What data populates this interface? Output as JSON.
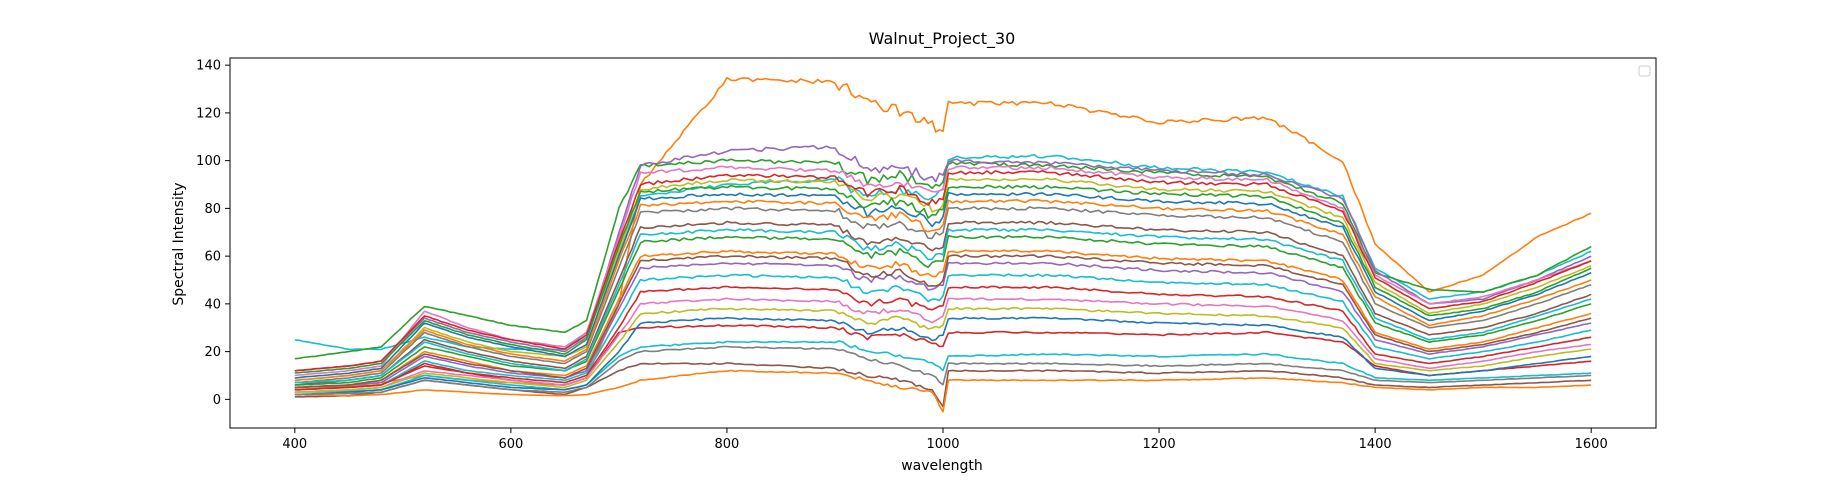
{
  "chart_data": {
    "type": "line",
    "title": "Walnut_Project_30",
    "xlabel": "wavelength",
    "ylabel": "Spectral Intensity",
    "xlim": [
      340,
      1660
    ],
    "ylim": [
      -12,
      143
    ],
    "x_ticks": [
      400,
      600,
      800,
      1000,
      1200,
      1400,
      1600
    ],
    "y_ticks": [
      0,
      20,
      40,
      60,
      80,
      100,
      120,
      140
    ],
    "grid": false,
    "legend": "top-right, empty",
    "palette": [
      "#1f77b4",
      "#ff7f0e",
      "#2ca02c",
      "#d62728",
      "#9467bd",
      "#8c564b",
      "#e377c2",
      "#7f7f7f",
      "#bcbd22",
      "#17becf"
    ],
    "x": [
      400,
      450,
      480,
      520,
      560,
      600,
      650,
      670,
      700,
      720,
      800,
      900,
      930,
      960,
      990,
      1000,
      1005,
      1100,
      1200,
      1300,
      1370,
      1400,
      1450,
      1500,
      1550,
      1600
    ],
    "series": [
      {
        "values": [
          25.0,
          21.0,
          21.0,
          26.0,
          22.0,
          21.0,
          21.0,
          28.0,
          60.0,
          85.0,
          90.0,
          92.0,
          85.0,
          88.0,
          83.0,
          88.0,
          101.0,
          102.0,
          97.0,
          95.0,
          85.0,
          55.0,
          42.0,
          45.0,
          52.0,
          62.0
        ],
        "color": "#17becf"
      },
      {
        "values": [
          5.0,
          5.5,
          7.0,
          10.0,
          8.0,
          7.0,
          6.0,
          9.0,
          40.0,
          90.0,
          134.0,
          133.0,
          124.0,
          121.0,
          115.0,
          113.0,
          124.0,
          124.0,
          116.0,
          118.0,
          100.0,
          65.0,
          45.0,
          52.0,
          68.0,
          78.0
        ],
        "color": "#ff7f0e"
      },
      {
        "values": [
          17.0,
          20.0,
          22.0,
          39.0,
          35.0,
          31.0,
          28.0,
          33.0,
          80.0,
          98.0,
          100.0,
          99.0,
          92.0,
          94.0,
          90.0,
          91.0,
          99.0,
          98.0,
          95.0,
          93.0,
          82.0,
          53.0,
          46.0,
          45.0,
          52.0,
          64.0
        ],
        "color": "#2ca02c"
      },
      {
        "values": [
          1.0,
          1.5,
          3.0,
          8.0,
          6.0,
          4.0,
          2.0,
          5.0,
          12.0,
          15.0,
          15.0,
          13.0,
          10.0,
          8.0,
          4.0,
          -3.0,
          12.0,
          12.0,
          11.0,
          12.0,
          9.0,
          6.0,
          5.0,
          6.0,
          7.0,
          8.0
        ],
        "color": "#8c564b"
      },
      {
        "values": [
          2.0,
          1.5,
          2.0,
          4.0,
          3.0,
          2.0,
          1.5,
          2.0,
          5.0,
          8.0,
          12.0,
          11.0,
          8.0,
          5.0,
          3.0,
          -5.0,
          8.0,
          8.0,
          8.0,
          9.0,
          7.0,
          5.0,
          4.0,
          5.0,
          5.0,
          6.0
        ],
        "color": "#ff7f0e"
      },
      {
        "values": [
          12.0,
          14.0,
          16.0,
          34.0,
          28.0,
          24.0,
          20.0,
          26.0,
          70.0,
          98.0,
          104.0,
          106.0,
          96.0,
          98.0,
          92.0,
          94.0,
          100.0,
          99.0,
          96.0,
          94.0,
          84.0,
          54.0,
          40.0,
          42.0,
          50.0,
          60.0
        ],
        "color": "#9467bd"
      },
      {
        "values": [
          3.0,
          3.5,
          4.0,
          10.0,
          8.0,
          6.0,
          4.0,
          6.0,
          18.0,
          22.0,
          24.0,
          24.0,
          21.0,
          18.0,
          16.0,
          12.0,
          18.0,
          19.0,
          18.0,
          19.0,
          15.0,
          9.0,
          8.0,
          9.0,
          10.0,
          11.0
        ],
        "color": "#17becf"
      },
      {
        "values": [
          4.0,
          5.0,
          6.0,
          15.0,
          11.0,
          8.0,
          6.0,
          9.0,
          28.0,
          30.0,
          31.0,
          30.0,
          26.0,
          27.0,
          24.0,
          22.0,
          28.0,
          28.0,
          27.0,
          28.0,
          24.0,
          14.0,
          10.0,
          12.0,
          14.0,
          16.0
        ],
        "color": "#d62728"
      },
      {
        "values": [
          10.0,
          12.0,
          14.0,
          37.0,
          30.0,
          25.0,
          22.0,
          28.0,
          68.0,
          95.0,
          97.0,
          96.0,
          90.0,
          91.0,
          86.0,
          88.0,
          97.0,
          97.0,
          93.0,
          92.0,
          80.0,
          52.0,
          40.0,
          43.0,
          50.0,
          58.0
        ],
        "color": "#e377c2"
      },
      {
        "values": [
          8.0,
          10.0,
          12.0,
          30.0,
          24.0,
          20.0,
          18.0,
          22.0,
          62.0,
          88.0,
          92.0,
          91.0,
          84.0,
          86.0,
          80.0,
          82.0,
          92.0,
          92.0,
          88.0,
          87.0,
          76.0,
          49.0,
          36.0,
          40.0,
          47.0,
          56.0
        ],
        "color": "#bcbd22"
      },
      {
        "values": [
          9.0,
          11.0,
          13.0,
          32.0,
          26.0,
          22.0,
          18.0,
          23.0,
          60.0,
          84.0,
          86.0,
          85.0,
          78.0,
          80.0,
          74.0,
          76.0,
          86.0,
          86.0,
          83.0,
          82.0,
          72.0,
          45.0,
          33.0,
          37.0,
          44.0,
          53.0
        ],
        "color": "#1f77b4"
      },
      {
        "values": [
          7.0,
          9.0,
          11.0,
          28.0,
          22.0,
          18.0,
          15.0,
          20.0,
          55.0,
          78.0,
          80.0,
          79.0,
          72.0,
          74.0,
          68.0,
          70.0,
          80.0,
          80.0,
          77.0,
          76.0,
          66.0,
          40.0,
          30.0,
          33.0,
          40.0,
          48.0
        ],
        "color": "#7f7f7f"
      },
      {
        "values": [
          6.0,
          8.0,
          10.0,
          25.0,
          20.0,
          16.0,
          13.0,
          18.0,
          50.0,
          72.0,
          74.0,
          73.0,
          66.0,
          68.0,
          62.0,
          64.0,
          74.0,
          74.0,
          71.0,
          70.0,
          60.0,
          36.0,
          27.0,
          30.0,
          36.0,
          44.0
        ],
        "color": "#8c564b"
      },
      {
        "values": [
          6.0,
          7.0,
          9.0,
          22.0,
          18.0,
          14.0,
          12.0,
          16.0,
          46.0,
          66.0,
          68.0,
          67.0,
          60.0,
          62.0,
          56.0,
          58.0,
          68.0,
          68.0,
          65.0,
          64.0,
          55.0,
          32.0,
          24.0,
          27.0,
          33.0,
          40.0
        ],
        "color": "#2ca02c"
      },
      {
        "values": [
          5.0,
          6.0,
          8.0,
          20.0,
          16.0,
          12.0,
          10.0,
          14.0,
          42.0,
          60.0,
          62.0,
          61.0,
          55.0,
          57.0,
          51.0,
          53.0,
          62.0,
          62.0,
          59.0,
          58.0,
          50.0,
          28.0,
          21.0,
          24.0,
          30.0,
          36.0
        ],
        "color": "#ff7f0e"
      },
      {
        "values": [
          5.0,
          6.0,
          7.0,
          18.0,
          14.0,
          11.0,
          9.0,
          12.0,
          38.0,
          55.0,
          57.0,
          56.0,
          50.0,
          52.0,
          46.0,
          48.0,
          57.0,
          57.0,
          54.0,
          53.0,
          45.0,
          25.0,
          19.0,
          22.0,
          27.0,
          32.0
        ],
        "color": "#9467bd"
      },
      {
        "values": [
          4.0,
          5.0,
          6.0,
          16.0,
          12.0,
          10.0,
          8.0,
          11.0,
          34.0,
          50.0,
          52.0,
          51.0,
          45.0,
          47.0,
          41.0,
          43.0,
          52.0,
          52.0,
          49.0,
          48.0,
          41.0,
          22.0,
          17.0,
          20.0,
          24.0,
          29.0
        ],
        "color": "#17becf"
      },
      {
        "values": [
          4.0,
          5.0,
          6.0,
          14.0,
          11.0,
          9.0,
          7.0,
          10.0,
          30.0,
          45.0,
          47.0,
          46.0,
          40.0,
          42.0,
          37.0,
          39.0,
          47.0,
          47.0,
          44.0,
          43.0,
          37.0,
          19.0,
          15.0,
          18.0,
          22.0,
          26.0
        ],
        "color": "#d62728"
      },
      {
        "values": [
          3.0,
          4.0,
          5.0,
          12.0,
          10.0,
          8.0,
          6.0,
          9.0,
          27.0,
          40.0,
          42.0,
          41.0,
          36.0,
          38.0,
          33.0,
          35.0,
          42.0,
          42.0,
          40.0,
          39.0,
          33.0,
          17.0,
          13.0,
          16.0,
          20.0,
          23.0
        ],
        "color": "#e377c2"
      },
      {
        "values": [
          3.0,
          4.0,
          5.0,
          11.0,
          9.0,
          7.0,
          5.0,
          8.0,
          24.0,
          36.0,
          38.0,
          37.0,
          32.0,
          34.0,
          29.0,
          31.0,
          38.0,
          38.0,
          36.0,
          35.0,
          30.0,
          15.0,
          12.0,
          14.0,
          18.0,
          21.0
        ],
        "color": "#bcbd22"
      },
      {
        "values": [
          2.0,
          3.0,
          4.0,
          9.0,
          7.0,
          5.0,
          4.0,
          6.0,
          20.0,
          32.0,
          34.0,
          33.0,
          28.0,
          30.0,
          25.0,
          27.0,
          34.0,
          34.0,
          32.0,
          31.0,
          26.0,
          13.0,
          10.0,
          12.0,
          15.0,
          18.0
        ],
        "color": "#1f77b4"
      },
      {
        "values": [
          12.0,
          14.0,
          16.0,
          35.0,
          29.0,
          25.0,
          21.0,
          27.0,
          66.0,
          90.0,
          94.0,
          93.0,
          86.0,
          88.0,
          82.0,
          84.0,
          95.0,
          95.0,
          91.0,
          90.0,
          79.0,
          51.0,
          38.0,
          41.0,
          49.0,
          58.0
        ],
        "color": "#d62728"
      },
      {
        "values": [
          11.0,
          13.0,
          15.0,
          33.0,
          27.0,
          23.0,
          19.0,
          25.0,
          64.0,
          87.0,
          89.0,
          88.0,
          81.0,
          83.0,
          77.0,
          79.0,
          89.0,
          89.0,
          86.0,
          85.0,
          74.0,
          47.0,
          35.0,
          38.0,
          45.0,
          55.0
        ],
        "color": "#2ca02c"
      },
      {
        "values": [
          8.0,
          10.0,
          12.0,
          29.0,
          23.0,
          19.0,
          16.0,
          21.0,
          58.0,
          81.0,
          83.0,
          82.0,
          75.0,
          77.0,
          71.0,
          73.0,
          83.0,
          83.0,
          80.0,
          79.0,
          69.0,
          43.0,
          31.0,
          35.0,
          42.0,
          50.0
        ],
        "color": "#ff7f0e"
      },
      {
        "values": [
          7.0,
          8.0,
          10.0,
          24.0,
          19.0,
          15.0,
          12.0,
          17.0,
          48.0,
          69.0,
          71.0,
          70.0,
          63.0,
          65.0,
          59.0,
          61.0,
          71.0,
          71.0,
          68.0,
          67.0,
          58.0,
          34.0,
          25.0,
          28.0,
          35.0,
          42.0
        ],
        "color": "#17becf"
      },
      {
        "values": [
          5.0,
          6.0,
          8.0,
          19.0,
          15.0,
          12.0,
          9.0,
          13.0,
          40.0,
          58.0,
          60.0,
          59.0,
          52.0,
          54.0,
          48.0,
          50.0,
          60.0,
          60.0,
          57.0,
          56.0,
          48.0,
          27.0,
          20.0,
          23.0,
          28.0,
          34.0
        ],
        "color": "#8c564b"
      },
      {
        "values": [
          2.0,
          2.5,
          3.0,
          8.0,
          6.0,
          4.0,
          3.0,
          5.0,
          16.0,
          20.0,
          22.0,
          21.0,
          17.0,
          14.0,
          10.0,
          6.0,
          15.0,
          15.0,
          14.0,
          15.0,
          12.0,
          8.0,
          7.0,
          8.0,
          9.0,
          10.0
        ],
        "color": "#7f7f7f"
      }
    ]
  }
}
